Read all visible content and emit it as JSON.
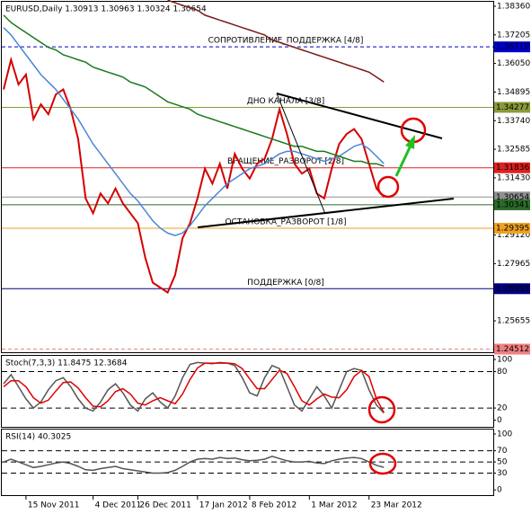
{
  "chart_data": [
    {
      "type": "line",
      "title": "EURUSD,Daily  1.30913 1.30963 1.30324 1.30654",
      "categories": [
        null,
        null,
        null,
        "15 Nov 2011",
        null,
        null,
        null,
        null,
        null,
        null,
        null,
        null,
        "4 Dec 2011",
        null,
        null,
        null,
        null,
        null,
        "26 Dec 2011",
        null,
        null,
        null,
        null,
        null,
        null,
        null,
        "17 Jan 2012",
        null,
        null,
        null,
        null,
        null,
        null,
        "8 Feb 2012",
        null,
        null,
        null,
        null,
        null,
        null,
        null,
        "1 Mar 2012",
        null,
        null,
        null,
        null,
        null,
        null,
        null,
        "23 Mar 2012",
        null,
        null
      ],
      "series": [
        {
          "color": "#d40000",
          "values": [
            1.35,
            1.362,
            1.352,
            1.356,
            1.338,
            1.344,
            1.34,
            1.348,
            1.35,
            1.342,
            1.33,
            1.306,
            1.3,
            1.308,
            1.304,
            1.31,
            1.304,
            1.3,
            1.296,
            1.282,
            1.272,
            1.27,
            1.268,
            1.275,
            1.29,
            1.296,
            1.306,
            1.318,
            1.312,
            1.32,
            1.31,
            1.324,
            1.318,
            1.314,
            1.32,
            1.322,
            1.33,
            1.342,
            1.332,
            1.32,
            1.316,
            1.318,
            1.308,
            1.306,
            1.318,
            1.328,
            1.332,
            1.334,
            1.33,
            1.32,
            1.31,
            1.30654
          ]
        },
        {
          "color": "#4a86d8",
          "values": [
            1.375,
            1.372,
            1.368,
            1.364,
            1.36,
            1.356,
            1.353,
            1.35,
            1.346,
            1.342,
            1.338,
            1.333,
            1.328,
            1.324,
            1.32,
            1.316,
            1.312,
            1.308,
            1.305,
            1.301,
            1.297,
            1.294,
            1.292,
            1.291,
            1.292,
            1.295,
            1.299,
            1.303,
            1.306,
            1.309,
            1.312,
            1.314,
            1.316,
            1.318,
            1.319,
            1.32,
            1.322,
            1.324,
            1.325,
            1.325,
            1.324,
            1.323,
            1.322,
            1.321,
            1.322,
            1.323,
            1.325,
            1.327,
            1.328,
            1.326,
            1.323,
            1.32
          ]
        },
        {
          "color": "#1a7a1a",
          "values": [
            1.38,
            1.377,
            1.375,
            1.373,
            1.371,
            1.369,
            1.367,
            1.366,
            1.364,
            1.363,
            1.362,
            1.361,
            1.359,
            1.358,
            1.357,
            1.356,
            1.355,
            1.353,
            1.352,
            1.351,
            1.349,
            1.347,
            1.345,
            1.344,
            1.343,
            1.342,
            1.34,
            1.339,
            1.338,
            1.337,
            1.336,
            1.335,
            1.334,
            1.333,
            1.332,
            1.331,
            1.33,
            1.329,
            1.328,
            1.327,
            1.327,
            1.326,
            1.325,
            1.325,
            1.324,
            1.323,
            1.322,
            1.321,
            1.321,
            1.32,
            1.32,
            1.319
          ]
        },
        {
          "color": "#7a1a1a",
          "values": [
            null,
            null,
            null,
            null,
            null,
            null,
            null,
            null,
            null,
            null,
            null,
            null,
            null,
            null,
            null,
            null,
            null,
            null,
            null,
            null,
            null,
            null,
            1.386,
            1.385,
            1.384,
            1.383,
            1.382,
            1.38,
            1.379,
            1.378,
            1.377,
            1.376,
            1.375,
            1.374,
            1.373,
            1.372,
            1.37,
            1.369,
            1.368,
            1.367,
            1.366,
            1.365,
            1.364,
            1.363,
            1.362,
            1.361,
            1.36,
            1.359,
            1.358,
            1.357,
            1.355,
            1.353
          ]
        }
      ],
      "levels": [
        {
          "value": 1.36719,
          "color": "#0000cc",
          "dashed": true,
          "label": "СОПРОТИВЛЕНИЕ_ПОДДЕРЖКА [4/8]"
        },
        {
          "value": 1.34277,
          "color": "#8a9a3a",
          "label": "ДНО КАНАЛА [3/8]"
        },
        {
          "value": 1.31836,
          "color": "#e02020",
          "label": "ВРАЩЕНИЕ_РАЗВОРОТ [2/8]"
        },
        {
          "value": 1.30654,
          "color": "#909090"
        },
        {
          "value": 1.30341,
          "color": "#2a6a2a"
        },
        {
          "value": 1.29395,
          "color": "#f0a020",
          "label": "ОСТАНОВКА_РАЗВОРОТ [1/8]"
        },
        {
          "value": 1.26953,
          "color": "#000080",
          "label": "ПОДДЕРЖКА [0/8]"
        },
        {
          "value": 1.24512,
          "color": "#f08080",
          "dashed": true
        }
      ],
      "ylim": [
        1.2435,
        1.3854
      ],
      "yticks": [
        {
          "value": 1.3836,
          "label": "1.38360"
        },
        {
          "value": 1.37205,
          "label": "1.37205"
        },
        {
          "value": 1.3605,
          "label": "1.36050"
        },
        {
          "value": 1.34895,
          "label": "1.34895"
        },
        {
          "value": 1.3374,
          "label": "1.33740"
        },
        {
          "value": 1.32585,
          "label": "1.32585"
        },
        {
          "value": 1.3143,
          "label": "1.31430"
        },
        {
          "value": 1.2912,
          "label": "1.29120"
        },
        {
          "value": 1.27965,
          "label": "1.27965"
        },
        {
          "value": 1.25655,
          "label": "1.25655"
        }
      ]
    },
    {
      "type": "line",
      "title": "Stoch(7,3,3) 11.8475 12.3684",
      "series": [
        {
          "color": "#555555",
          "values": [
            60,
            75,
            55,
            35,
            20,
            30,
            50,
            65,
            70,
            55,
            35,
            20,
            15,
            30,
            50,
            60,
            45,
            25,
            15,
            35,
            45,
            30,
            20,
            40,
            70,
            92,
            95,
            94,
            93,
            95,
            94,
            90,
            70,
            45,
            40,
            70,
            90,
            85,
            55,
            25,
            15,
            35,
            55,
            40,
            20,
            50,
            80,
            85,
            82,
            50,
            25,
            11.8475
          ]
        },
        {
          "color": "#e00000",
          "values": [
            55,
            65,
            65,
            55,
            37,
            28,
            33,
            48,
            62,
            63,
            53,
            37,
            23,
            22,
            32,
            47,
            52,
            43,
            28,
            25,
            32,
            37,
            32,
            27,
            43,
            67,
            86,
            94,
            94,
            94,
            94,
            93,
            85,
            68,
            52,
            52,
            67,
            82,
            77,
            55,
            32,
            25,
            35,
            43,
            38,
            37,
            50,
            72,
            82,
            72,
            35,
            12.3684
          ]
        }
      ],
      "ylim": [
        -11,
        106
      ],
      "yticks": [
        0,
        20,
        80,
        100
      ]
    },
    {
      "type": "line",
      "title": "RSI(14) 40.3025",
      "series": [
        {
          "color": "#555555",
          "values": [
            50,
            55,
            50,
            45,
            40,
            42,
            45,
            48,
            50,
            47,
            42,
            36,
            35,
            38,
            40,
            42,
            38,
            36,
            34,
            32,
            30,
            30,
            31,
            35,
            42,
            50,
            55,
            56,
            55,
            58,
            56,
            57,
            54,
            52,
            53,
            55,
            60,
            56,
            52,
            50,
            50,
            51,
            48,
            47,
            52,
            55,
            57,
            58,
            56,
            50,
            44,
            40.3025
          ]
        }
      ],
      "ylim": [
        -11,
        108
      ],
      "yticks": [
        0,
        30,
        50,
        70,
        100
      ]
    }
  ]
}
